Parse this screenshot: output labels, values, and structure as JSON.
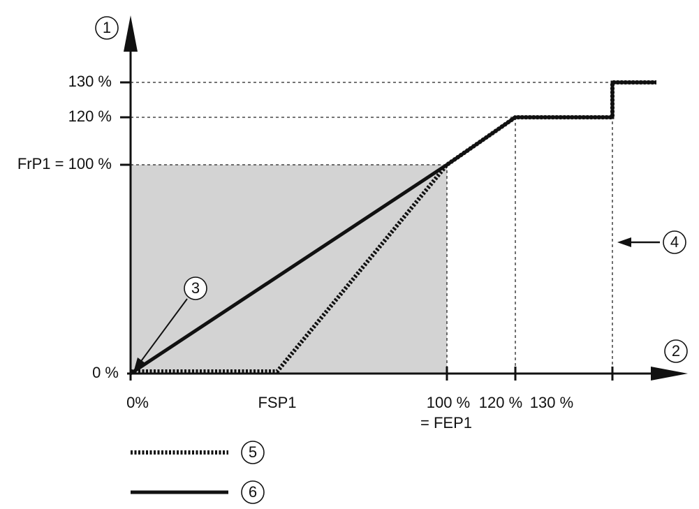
{
  "axes": {
    "y_labels": [
      "130 %",
      "120 %",
      "FrP1 = 100 %",
      "0 %"
    ],
    "x_labels": [
      "0%",
      "FSP1",
      "100 %",
      "120 %",
      "130 %"
    ],
    "x_note": "= FEP1"
  },
  "callouts": [
    "1",
    "2",
    "3",
    "4",
    "5",
    "6"
  ]
}
